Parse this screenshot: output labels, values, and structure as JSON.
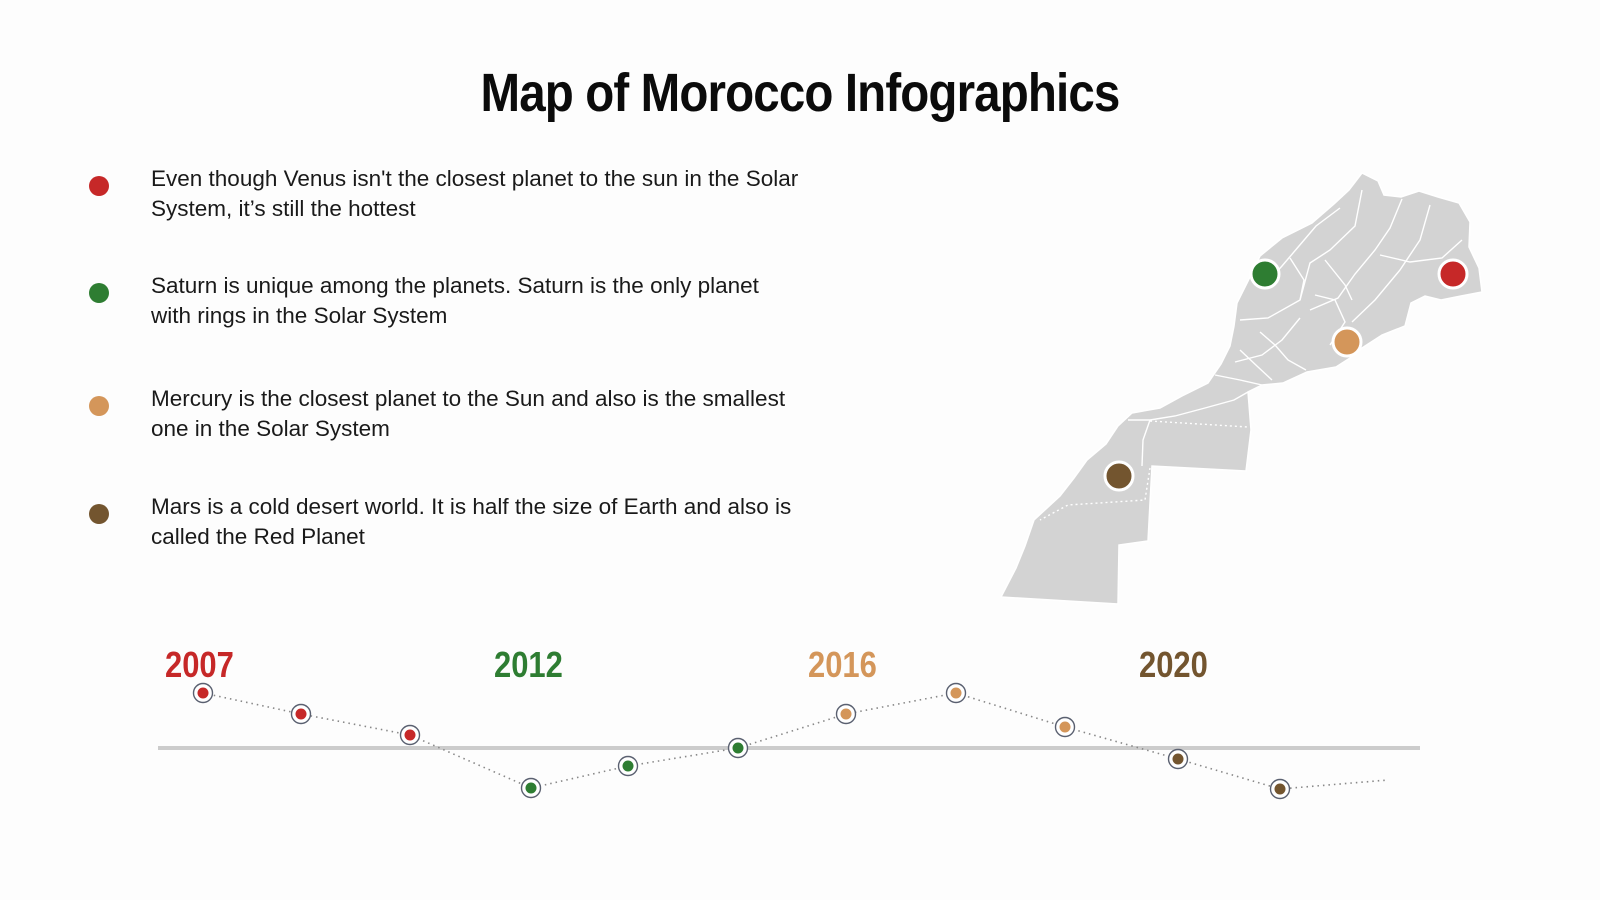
{
  "title": "Map of Morocco Infographics",
  "colors": {
    "red": "#c62828",
    "green": "#2e7d32",
    "tan": "#d4965a",
    "brown": "#73552f",
    "map_fill": "#d3d3d3",
    "timeline_line": "#cccccc"
  },
  "legend": [
    {
      "color": "#c62828",
      "text": "Even though Venus isn't the closest planet to the sun in the Solar System, it’s still the hottest"
    },
    {
      "color": "#2e7d32",
      "text": "Saturn is unique among the planets. Saturn is the only planet with rings in the Solar System"
    },
    {
      "color": "#d4965a",
      "text": "Mercury is the closest planet to the Sun and also is the smallest one in the Solar System"
    },
    {
      "color": "#73552f",
      "text": "Mars is a cold desert world. It is half the size of Earth and also is called the Red Planet"
    }
  ],
  "timeline": {
    "years": [
      {
        "label": "2007",
        "color": "#c62828"
      },
      {
        "label": "2012",
        "color": "#2e7d32"
      },
      {
        "label": "2016",
        "color": "#d4965a"
      },
      {
        "label": "2020",
        "color": "#73552f"
      }
    ]
  },
  "map": {
    "region": "Morocco",
    "markers": [
      {
        "color": "#2e7d32",
        "icon": "map-marker"
      },
      {
        "color": "#c62828",
        "icon": "map-marker"
      },
      {
        "color": "#d4965a",
        "icon": "map-marker"
      },
      {
        "color": "#73552f",
        "icon": "map-marker"
      }
    ]
  }
}
